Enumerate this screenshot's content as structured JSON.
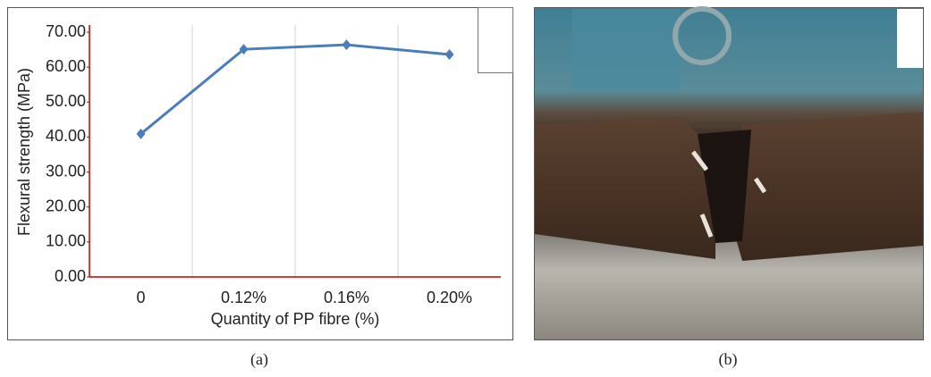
{
  "chart_data": {
    "type": "line",
    "y_label": "Flexural strength (MPa)",
    "x_label": "Quantity of PP fibre (%)",
    "categories": [
      "0",
      "0.12%",
      "0.16%",
      "0.20%"
    ],
    "values": [
      40.9,
      65.1,
      66.4,
      63.6
    ],
    "color": "#4a7ebb",
    "ylim": [
      0,
      70
    ],
    "yticks": [
      {
        "value": 0,
        "label": "0.00"
      },
      {
        "value": 10,
        "label": "10.00"
      },
      {
        "value": 20,
        "label": "20.00"
      },
      {
        "value": 30,
        "label": "30.00"
      },
      {
        "value": 40,
        "label": "40.00"
      },
      {
        "value": 50,
        "label": "50.00"
      },
      {
        "value": 60,
        "label": "60.00"
      },
      {
        "value": 70,
        "label": "70.00"
      }
    ]
  },
  "captions": [
    "(a)",
    "(b)"
  ]
}
